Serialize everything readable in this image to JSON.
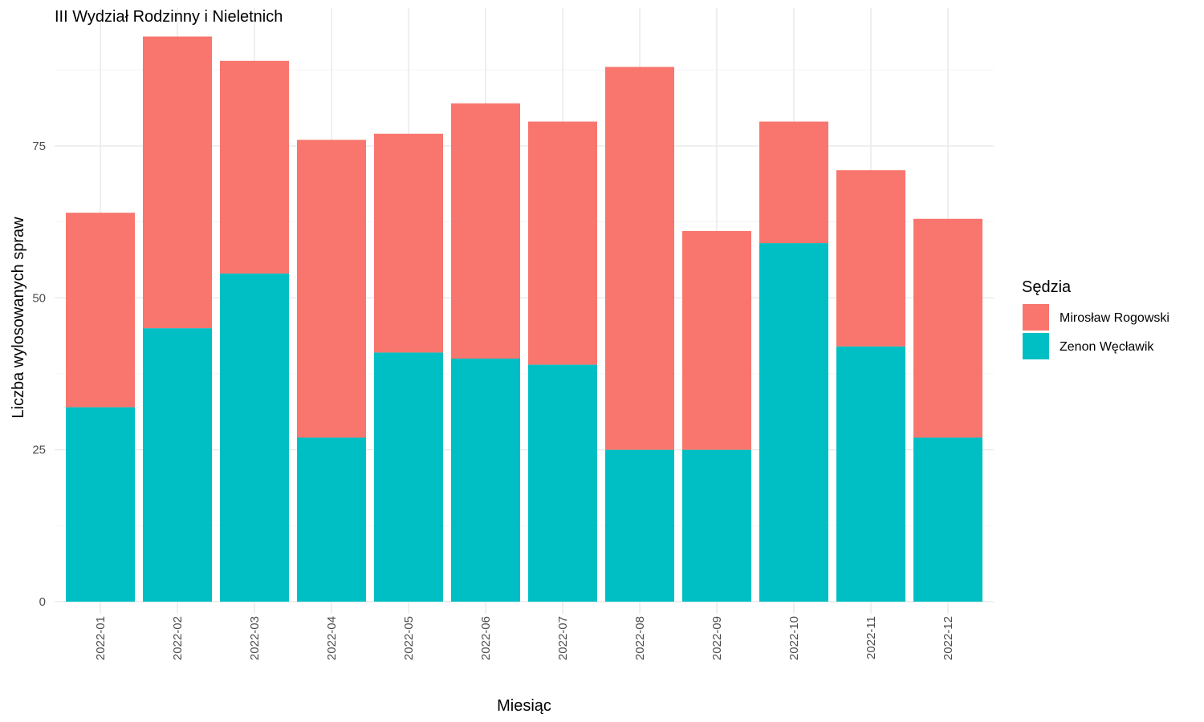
{
  "chart_data": {
    "type": "bar",
    "stacked": true,
    "title": "III Wydział Rodzinny i Nieletnich",
    "xlabel": "Miesiąc",
    "ylabel": "Liczba wylosowanych spraw",
    "categories": [
      "2022-01",
      "2022-02",
      "2022-03",
      "2022-04",
      "2022-05",
      "2022-06",
      "2022-07",
      "2022-08",
      "2022-09",
      "2022-10",
      "2022-11",
      "2022-12"
    ],
    "series": [
      {
        "name": "Zenon Węcławik",
        "color": "#00BFC4",
        "values": [
          32,
          45,
          54,
          27,
          41,
          40,
          39,
          25,
          25,
          59,
          42,
          27
        ]
      },
      {
        "name": "Mirosław Rogowski",
        "color": "#F8766D",
        "values": [
          32,
          48,
          35,
          49,
          36,
          42,
          40,
          63,
          36,
          20,
          29,
          36
        ]
      }
    ],
    "yticks": [
      0,
      25,
      50,
      75
    ],
    "ylim": [
      0,
      95
    ],
    "legend": {
      "title": "Sędzia",
      "position": "right",
      "order": [
        "Mirosław Rogowski",
        "Zenon Węcławik"
      ]
    },
    "grid": true
  }
}
